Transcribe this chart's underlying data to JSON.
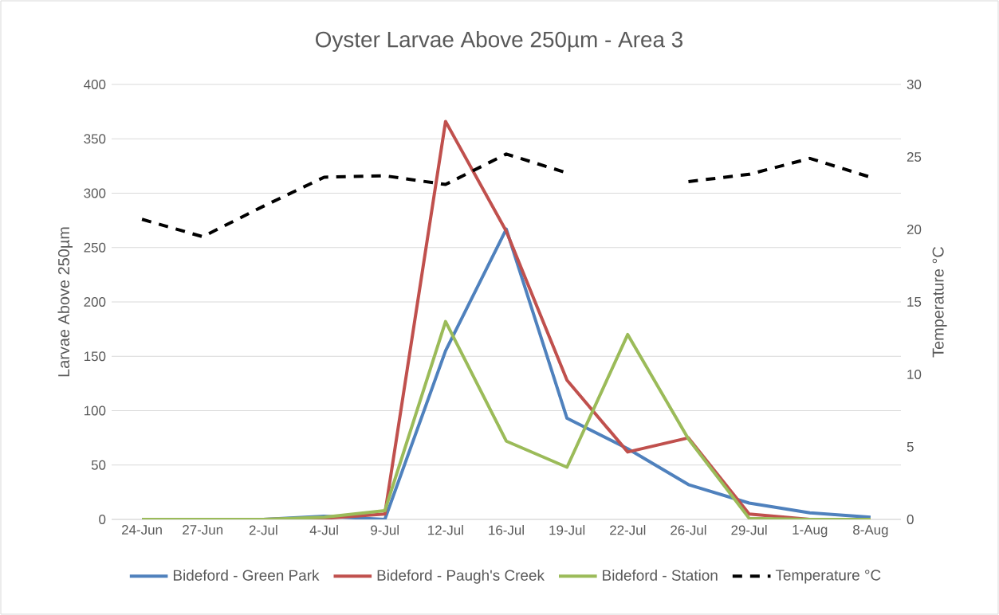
{
  "chart_data": {
    "type": "line",
    "title": "Oyster Larvae Above 250µm - Area 3",
    "ylabel": "Larvae Above 250µm",
    "y2label": "Temperature °C",
    "categories": [
      "24-Jun",
      "27-Jun",
      "2-Jul",
      "4-Jul",
      "9-Jul",
      "12-Jul",
      "16-Jul",
      "19-Jul",
      "22-Jul",
      "26-Jul",
      "29-Jul",
      "1-Aug",
      "8-Aug"
    ],
    "series": [
      {
        "name": "Bideford - Green Park",
        "color": "#4f81bd",
        "line_style": "solid",
        "values": [
          0,
          0,
          0,
          3,
          0,
          155,
          267,
          93,
          65,
          32,
          15,
          6,
          2
        ]
      },
      {
        "name": "Bideford - Paugh's Creek",
        "color": "#c0504d",
        "line_style": "solid",
        "values": [
          null,
          null,
          0,
          1,
          5,
          366,
          265,
          128,
          62,
          75,
          5,
          0,
          0
        ]
      },
      {
        "name": "Bideford - Station",
        "color": "#9bbb59",
        "line_style": "solid",
        "values": [
          0,
          0,
          0,
          2,
          8,
          182,
          72,
          48,
          170,
          74,
          1,
          0,
          0
        ]
      },
      {
        "name": "Temperature °C",
        "color": "#000000",
        "line_style": "dashed",
        "axis": "y2",
        "values": [
          20.7,
          19.5,
          21.6,
          23.6,
          23.7,
          23.1,
          25.2,
          23.9,
          null,
          23.3,
          23.8,
          24.9,
          23.6
        ]
      }
    ],
    "ylim": [
      0,
      400
    ],
    "yticks": [
      0,
      50,
      100,
      150,
      200,
      250,
      300,
      350,
      400
    ],
    "y2lim": [
      0,
      30
    ],
    "y2ticks": [
      0,
      5,
      10,
      15,
      20,
      25,
      30
    ],
    "grid": "y",
    "legend": "bottom"
  }
}
